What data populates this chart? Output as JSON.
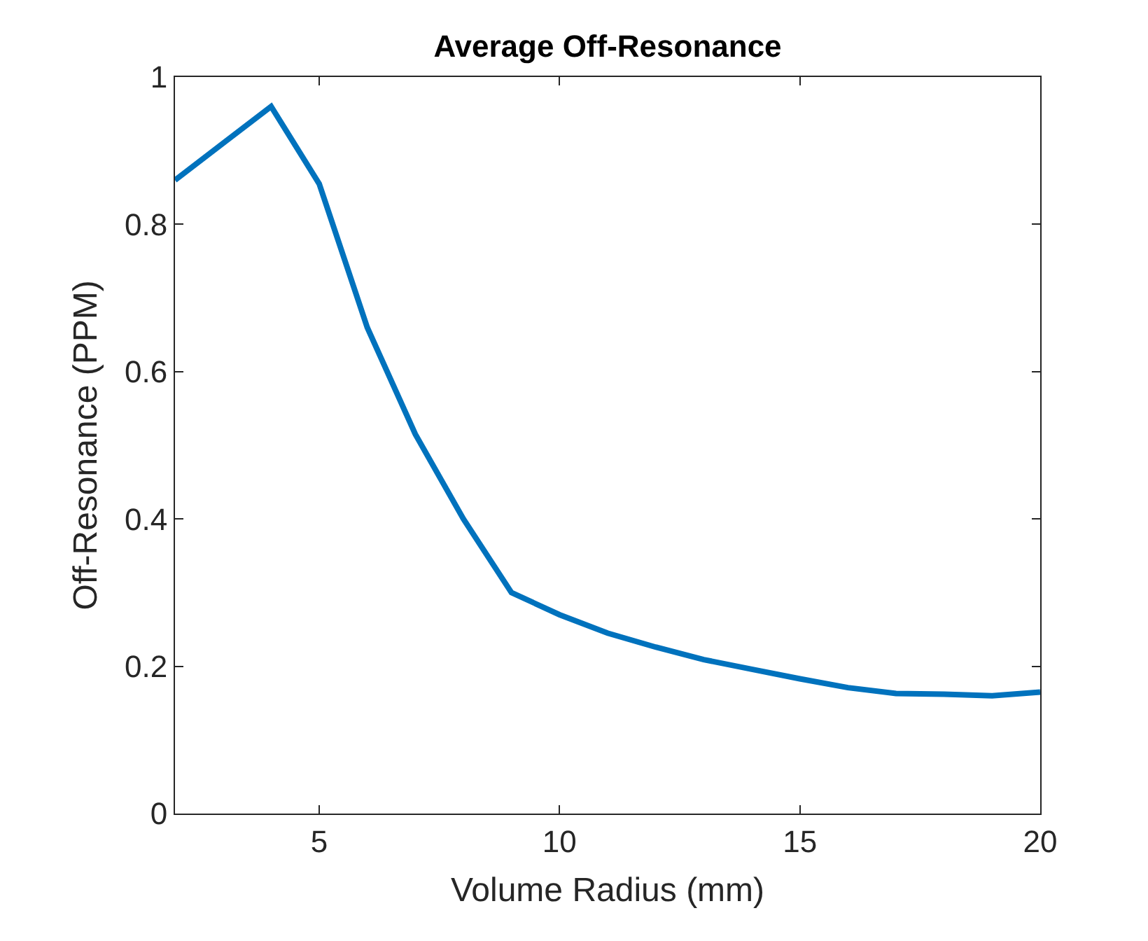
{
  "chart_data": {
    "type": "line",
    "title": "Average Off-Resonance",
    "xlabel": "Volume Radius (mm)",
    "ylabel": "Off-Resonance (PPM)",
    "x": [
      2,
      3,
      4,
      5,
      6,
      7,
      8,
      9,
      10,
      11,
      12,
      13,
      14,
      15,
      16,
      17,
      18,
      19,
      20
    ],
    "series": [
      {
        "color": "#0072bd",
        "values": [
          0.86,
          0.91,
          0.96,
          0.855,
          0.66,
          0.515,
          0.4,
          0.3,
          0.27,
          0.245,
          0.226,
          0.209,
          0.196,
          0.183,
          0.171,
          0.163,
          0.162,
          0.16,
          0.165
        ]
      }
    ],
    "xlim": [
      2,
      20
    ],
    "xticks": [
      5,
      10,
      15,
      20
    ],
    "ylim": [
      0,
      1
    ],
    "yticks": [
      0,
      0.2,
      0.4,
      0.6,
      0.8,
      1
    ],
    "marker": "none",
    "line_style": "solid"
  }
}
